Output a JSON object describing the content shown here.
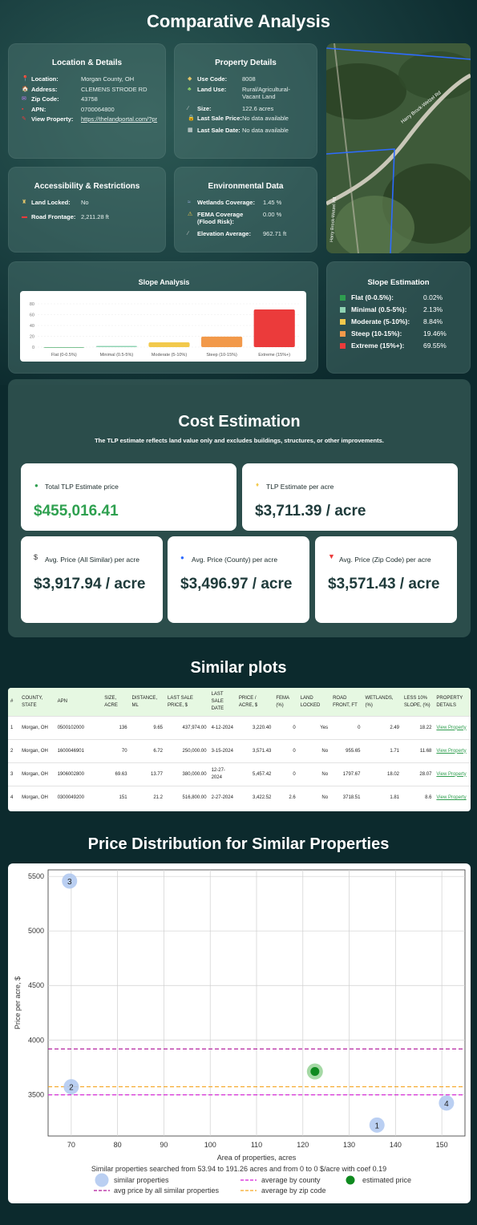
{
  "page_title": "Comparative Analysis",
  "location": {
    "title": "Location & Details",
    "rows": [
      {
        "icon": "pin-icon",
        "key": "Location:",
        "value": "Morgan County, OH"
      },
      {
        "icon": "house-icon",
        "key": "Address:",
        "value": "CLEMENS STRODE RD"
      },
      {
        "icon": "mail-icon",
        "key": "Zip Code:",
        "value": "43758"
      },
      {
        "icon": "id-icon",
        "key": "APN:",
        "value": "0700064800"
      },
      {
        "icon": "link-icon",
        "key": "View Property:",
        "value": "https://thelandportal.com/?pr"
      }
    ]
  },
  "property": {
    "title": "Property Details",
    "rows": [
      {
        "key": "Use Code:",
        "value": "8008"
      },
      {
        "key": "Land Use:",
        "value": "Rural/Agricultural-Vacant Land"
      },
      {
        "key": "Size:",
        "value": "122.6 acres"
      },
      {
        "key": "Last Sale Price:",
        "value": "No data available"
      },
      {
        "key": "Last Sale Date:",
        "value": "No data available"
      }
    ]
  },
  "access": {
    "title": "Accessibility & Restrictions",
    "rows": [
      {
        "key": "Land Locked:",
        "value": "No"
      },
      {
        "key": "Road Frontage:",
        "value": "2,211.28 ft"
      }
    ]
  },
  "environment": {
    "title": "Environmental Data",
    "rows": [
      {
        "key": "Wetlands Coverage:",
        "value": "1.45 %"
      },
      {
        "key": "FEMA Coverage (Flood Risk):",
        "value": "0.00 %"
      },
      {
        "key": "Elevation Average:",
        "value": "962.71 ft"
      }
    ]
  },
  "map": {
    "road_label_1": "Harry Brock-Wetzel Rd",
    "road_label_2": "Harry Brock-Wetzel Rd"
  },
  "slope_analysis": {
    "title": "Slope Analysis"
  },
  "slope_estimation": {
    "title": "Slope Estimation",
    "rows": [
      {
        "label": "Flat (0-0.5%):",
        "value": "0.02%",
        "color": "#2e9e4f"
      },
      {
        "label": "Minimal (0.5-5%):",
        "value": "2.13%",
        "color": "#8fd3b3"
      },
      {
        "label": "Moderate (5-10%):",
        "value": "8.84%",
        "color": "#f2c94c"
      },
      {
        "label": "Steep (10-15%):",
        "value": "19.46%",
        "color": "#f2994a"
      },
      {
        "label": "Extreme (15%+):",
        "value": "69.55%",
        "color": "#eb3b3b"
      }
    ]
  },
  "cost": {
    "title": "Cost Estimation",
    "subtitle": "The TLP estimate reflects land value only and excludes buildings, structures, or other improvements.",
    "total_label": "Total TLP Estimate price",
    "total_value": "$455,016.41",
    "per_acre_label": "TLP Estimate per acre",
    "per_acre_value": "$3,711.39 / acre",
    "avg_all_label": "Avg. Price (All Similar) per acre",
    "avg_all_value": "$3,917.94 / acre",
    "avg_county_label": "Avg. Price (County) per acre",
    "avg_county_value": "$3,496.97 / acre",
    "avg_zip_label": "Avg. Price (Zip Code) per acre",
    "avg_zip_value": "$3,571.43 / acre"
  },
  "similar": {
    "title": "Similar plots",
    "headers": [
      "#",
      "COUNTY, STATE",
      "APN",
      "SIZE, ACRE",
      "DISTANCE, ML",
      "LAST SALE PRICE, $",
      "LAST SALE DATE",
      "PRICE / ACRE, $",
      "FEMA (%)",
      "LAND LOCKED",
      "ROAD FRONT, FT",
      "WETLANDS, (%)",
      "LESS 10% SLOPE, (%)",
      "PROPERTY DETAILS"
    ],
    "rows": [
      [
        "1",
        "Morgan, OH",
        "0500102000",
        "136",
        "9.65",
        "437,974.00",
        "4-12-2024",
        "3,220.40",
        "0",
        "Yes",
        "0",
        "2.49",
        "18.22",
        "View Property"
      ],
      [
        "2",
        "Morgan, OH",
        "1600046901",
        "70",
        "6.72",
        "250,000.00",
        "3-15-2024",
        "3,571.43",
        "0",
        "No",
        "955.65",
        "1.71",
        "11.68",
        "View Property"
      ],
      [
        "3",
        "Morgan, OH",
        "1906002800",
        "69.63",
        "13.77",
        "380,000.00",
        "12-27-2024",
        "5,457.42",
        "0",
        "No",
        "1797.67",
        "18.02",
        "28.07",
        "View Property"
      ],
      [
        "4",
        "Morgan, OH",
        "0300049200",
        "151",
        "21.2",
        "516,800.00",
        "2-27-2024",
        "3,422.52",
        "2.6",
        "No",
        "3718.51",
        "1.81",
        "8.6",
        "View Property"
      ]
    ]
  },
  "price_dist": {
    "title": "Price Distribution for Similar Properties",
    "caption": "Similar properties searched from 53.94 to 191.26 acres and from 0 to 0 $/acre with coef 0.19",
    "legend": [
      "similar properties",
      "average by county",
      "estimated price",
      "avg price by all similar properties",
      "average by zip code"
    ]
  },
  "chart_data": [
    {
      "type": "bar",
      "categories": [
        "Flat (0-0.5%)",
        "Minimal (0.5-5%)",
        "Moderate (5-10%)",
        "Steep (10-15%)",
        "Extreme (15%+)"
      ],
      "values": [
        0.02,
        2.13,
        8.84,
        19.46,
        69.55
      ],
      "colors": [
        "#2e9e4f",
        "#8fd3b3",
        "#f2c94c",
        "#f2994a",
        "#eb3b3b"
      ],
      "yticks": [
        "0",
        "20",
        "40",
        "60",
        "80"
      ],
      "ylim": [
        0,
        80
      ],
      "grid": true
    },
    {
      "type": "scatter",
      "xlabel": "Area of properties, acres",
      "ylabel": "Price per acre, $",
      "xlim": [
        65,
        155
      ],
      "ylim": [
        3120,
        5560
      ],
      "xticks": [
        70,
        80,
        90,
        100,
        110,
        120,
        130,
        140,
        150
      ],
      "yticks": [
        3500,
        4000,
        4500,
        5000,
        5500
      ],
      "points": [
        {
          "label": "1",
          "x": 136,
          "y": 3220.4
        },
        {
          "label": "2",
          "x": 70,
          "y": 3571.43
        },
        {
          "label": "3",
          "x": 69.63,
          "y": 5457.42
        },
        {
          "label": "4",
          "x": 151,
          "y": 3422.52
        }
      ],
      "estimated": {
        "x": 122.6,
        "y": 3711.39
      },
      "lines": [
        {
          "name": "avg price by all similar properties",
          "y": 3917.94,
          "color": "#b0189b"
        },
        {
          "name": "average by county",
          "y": 3496.97,
          "color": "#d81bd8"
        },
        {
          "name": "average by zip code",
          "y": 3571.43,
          "color": "#f5a623"
        }
      ],
      "grid": true,
      "legend_position": "bottom"
    }
  ]
}
